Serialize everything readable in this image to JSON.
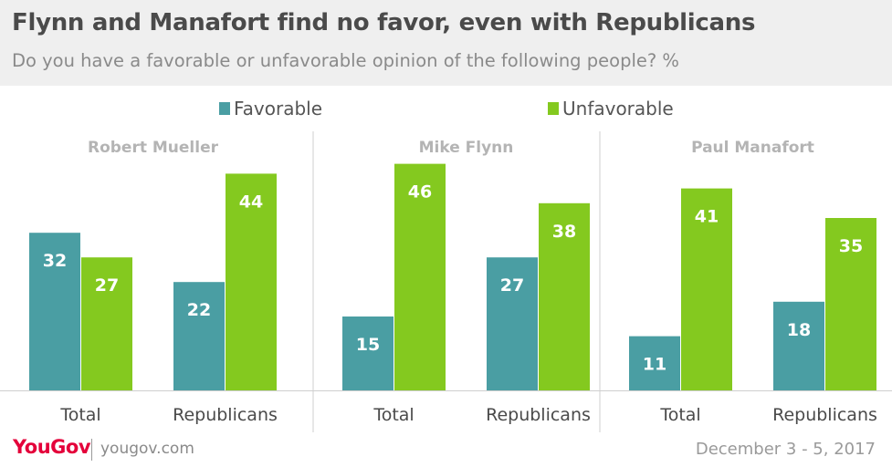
{
  "header": {
    "title": "Flynn and Manafort find no favor, even with Republicans",
    "subtitle": "Do you have a favorable or unfavorable opinion of the following people? %"
  },
  "colors": {
    "favorable": "#4a9ea3",
    "unfavorable": "#84c91f",
    "logo": "#e4003a"
  },
  "chart_data": {
    "type": "bar",
    "legend": [
      "Favorable",
      "Unfavorable"
    ],
    "legend_position": "top-center",
    "grid": false,
    "ylim": [
      0,
      50
    ],
    "groups": [
      {
        "title": "Robert Mueller",
        "categories": [
          "Total",
          "Republicans"
        ],
        "series": [
          {
            "name": "Favorable",
            "values": [
              32,
              22
            ]
          },
          {
            "name": "Unfavorable",
            "values": [
              27,
              44
            ]
          }
        ]
      },
      {
        "title": "Mike Flynn",
        "categories": [
          "Total",
          "Republicans"
        ],
        "series": [
          {
            "name": "Favorable",
            "values": [
              15,
              27
            ]
          },
          {
            "name": "Unfavorable",
            "values": [
              46,
              38
            ]
          }
        ]
      },
      {
        "title": "Paul Manafort",
        "categories": [
          "Total",
          "Republicans"
        ],
        "series": [
          {
            "name": "Favorable",
            "values": [
              11,
              18
            ]
          },
          {
            "name": "Unfavorable",
            "values": [
              41,
              35
            ]
          }
        ]
      }
    ]
  },
  "footer": {
    "logo": "YouGov",
    "url": "yougov.com",
    "date": "December 3 - 5, 2017"
  }
}
